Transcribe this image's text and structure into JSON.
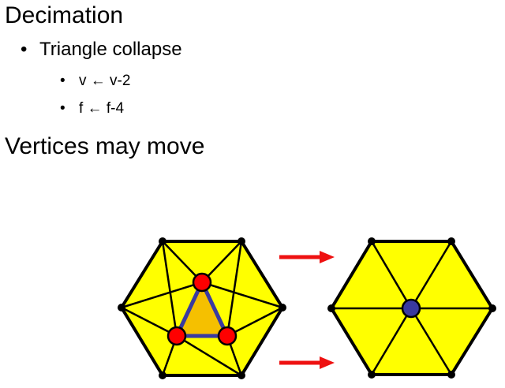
{
  "slide": {
    "title": "Decimation",
    "bullet_glyph": "•",
    "items": [
      {
        "label": "Triangle collapse",
        "subitems": [
          "v ← v-2",
          "f ← f-4"
        ]
      }
    ],
    "heading2": "Vertices may move"
  },
  "diagram": {
    "colors": {
      "face_fill": "#ffff00",
      "edge": "#000000",
      "collapsed_triangle_fill": "#f5c000",
      "collapsed_triangle_edge": "#3a3aa0",
      "collapsed_vertex": "#ff0000",
      "merged_vertex": "#3a3aa0",
      "arrow": "#ee1111"
    },
    "icons": [
      "right-arrow-icon",
      "right-arrow-icon"
    ]
  }
}
